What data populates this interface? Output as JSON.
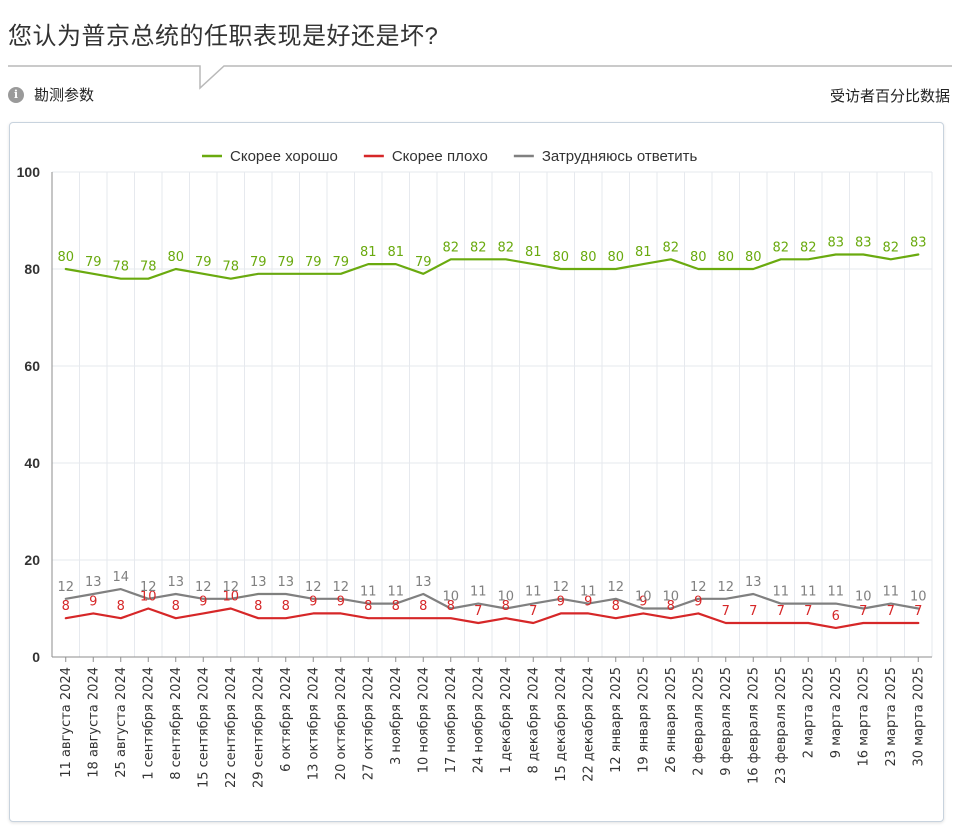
{
  "header": {
    "title": "您认为普京总统的任职表现是好还是坏?",
    "info_label": "勘测参数",
    "units_label": "受访者百分比数据"
  },
  "chart_data": {
    "type": "line",
    "title": "",
    "xlabel": "",
    "ylabel": "",
    "ylim": [
      0,
      100
    ],
    "yticks": [
      0,
      20,
      40,
      60,
      80,
      100
    ],
    "grid": true,
    "legend_position": "top-center",
    "categories": [
      "11 августа 2024",
      "18 августа 2024",
      "25 августа 2024",
      "1 сентября 2024",
      "8 сентября 2024",
      "15 сентября 2024",
      "22 сентября 2024",
      "29 сентября 2024",
      "6 октября 2024",
      "13 октября 2024",
      "20 октября 2024",
      "27 октября 2024",
      "3 ноября 2024",
      "10 ноября 2024",
      "17 ноября 2024",
      "24 ноября 2024",
      "1 декабря 2024",
      "8 декабря 2024",
      "15 декабря 2024",
      "22 декабря 2024",
      "12 января 2025",
      "19 января 2025",
      "26 января 2025",
      "2 февраля 2025",
      "9 февраля 2025",
      "16 февраля 2025",
      "23 февраля 2025",
      "2 марта 2025",
      "9 марта 2025",
      "16 марта 2025",
      "23 марта 2025",
      "30 марта 2025"
    ],
    "series": [
      {
        "name": "Скорее хорошо",
        "color": "#6aaa0f",
        "values": [
          80,
          79,
          78,
          78,
          80,
          79,
          78,
          79,
          79,
          79,
          79,
          81,
          81,
          79,
          82,
          82,
          82,
          81,
          80,
          80,
          80,
          81,
          82,
          80,
          80,
          80,
          82,
          82,
          83,
          83,
          82,
          83
        ]
      },
      {
        "name": "Скорее плохо",
        "color": "#d62728",
        "values": [
          8,
          9,
          8,
          10,
          8,
          9,
          10,
          8,
          8,
          9,
          9,
          8,
          8,
          8,
          8,
          7,
          8,
          7,
          9,
          9,
          8,
          9,
          8,
          9,
          7,
          7,
          7,
          7,
          6,
          7,
          7,
          7
        ]
      },
      {
        "name": "Затрудняюсь ответить",
        "color": "#808080",
        "values": [
          12,
          13,
          14,
          12,
          13,
          12,
          12,
          13,
          13,
          12,
          12,
          11,
          11,
          13,
          10,
          11,
          10,
          11,
          12,
          11,
          12,
          10,
          10,
          12,
          12,
          13,
          11,
          11,
          11,
          10,
          11,
          10
        ]
      }
    ]
  }
}
